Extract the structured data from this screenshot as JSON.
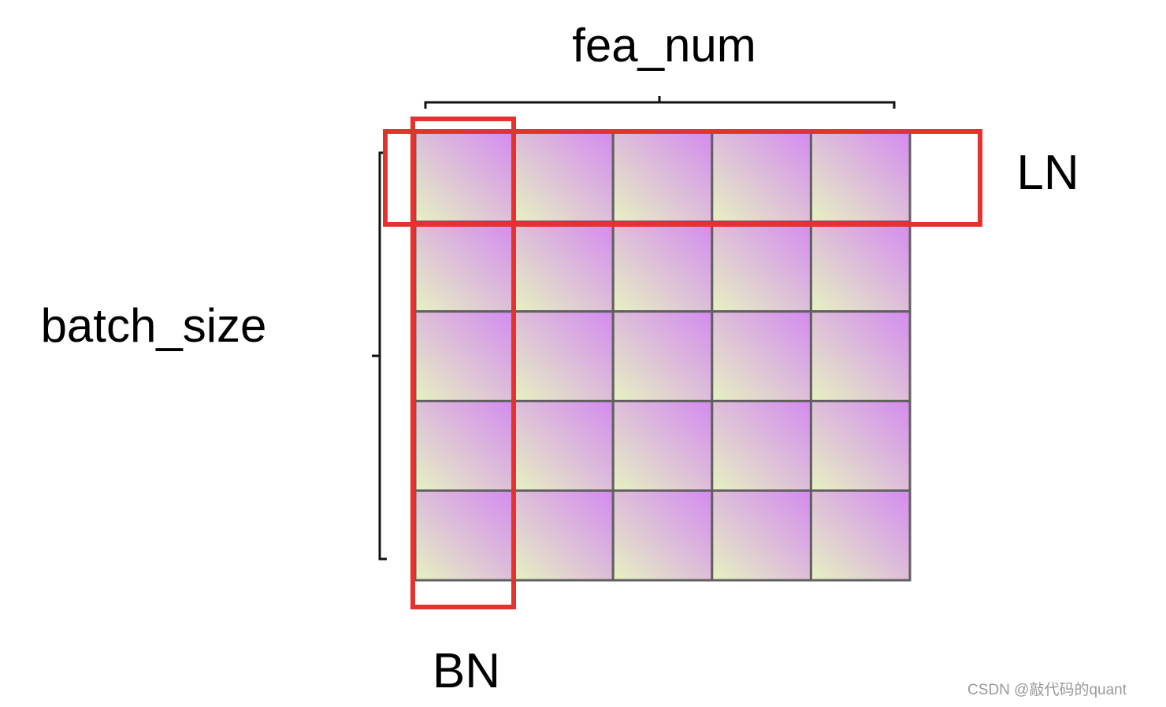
{
  "labels": {
    "top": "fea_num",
    "left": "batch_size",
    "right": "LN",
    "bottom": "BN"
  },
  "grid": {
    "rows": 5,
    "cols": 5
  },
  "colors": {
    "cell_gradient_start": "#e6f2c2",
    "cell_gradient_end": "#d48af0",
    "grid_line": "#606060",
    "highlight": "#e5322d",
    "bracket": "#111111"
  },
  "watermark": "CSDN @敲代码的quant"
}
